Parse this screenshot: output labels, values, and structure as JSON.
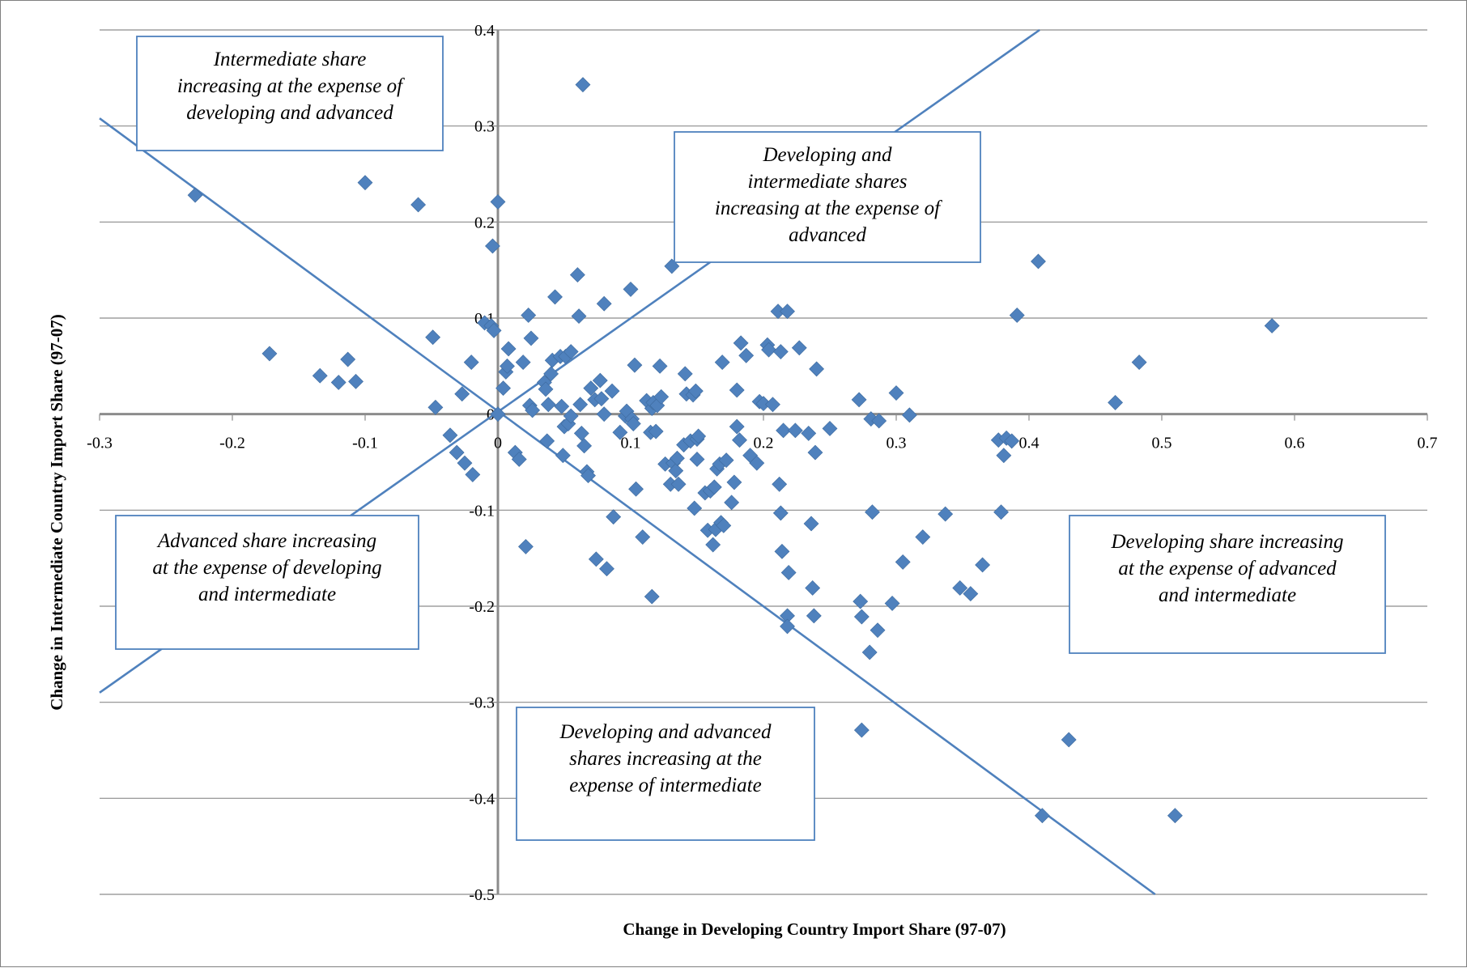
{
  "chart_data": {
    "type": "scatter",
    "title": "",
    "xlabel": "Change in Developing Country Import Share (97-07)",
    "ylabel": "Change in Intermediate Country Import Share (97-07)",
    "xlim": [
      -0.3,
      0.7
    ],
    "ylim": [
      -0.5,
      0.4
    ],
    "x_ticks": [
      "-0.3",
      "-0.2",
      "-0.1",
      "0",
      "0.1",
      "0.2",
      "0.3",
      "0.4",
      "0.5",
      "0.6",
      "0.7"
    ],
    "y_ticks": [
      "0.4",
      "0.3",
      "0.2",
      "0.1",
      "0",
      "-0.1",
      "-0.2",
      "-0.3",
      "-0.4",
      "-0.5"
    ],
    "grid": "horizontal",
    "marker": "diamond",
    "point_color": "#4f81bd",
    "guide_lines": [
      {
        "name": "slope-plus-one",
        "points": [
          [
            -0.3,
            -0.29
          ],
          [
            0.408,
            0.4
          ]
        ]
      },
      {
        "name": "slope-minus-one",
        "points": [
          [
            -0.3,
            0.308
          ],
          [
            0.495,
            -0.5
          ]
        ]
      }
    ],
    "annotations": [
      {
        "lines": [
          "Intermediate share",
          "increasing at the expense of",
          "developing and advanced"
        ]
      },
      {
        "lines": [
          "Developing and",
          "intermediate shares",
          "increasing at the expense of",
          "advanced"
        ]
      },
      {
        "lines": [
          "Advanced share increasing",
          "at the expense of developing",
          "and intermediate"
        ]
      },
      {
        "lines": [
          "Developing share increasing",
          "at the expense of advanced",
          "and intermediate"
        ]
      },
      {
        "lines": [
          "Developing and advanced",
          "shares increasing at the",
          "expense of intermediate"
        ]
      }
    ],
    "series": [
      {
        "points": [
          [
            -0.228,
            0.228
          ],
          [
            -0.172,
            0.063
          ],
          [
            -0.134,
            0.04
          ],
          [
            -0.12,
            0.033
          ],
          [
            -0.113,
            0.057
          ],
          [
            -0.107,
            0.034
          ],
          [
            -0.1,
            0.241
          ],
          [
            -0.06,
            0.218
          ],
          [
            -0.049,
            0.08
          ],
          [
            -0.047,
            0.007
          ],
          [
            -0.036,
            -0.022
          ],
          [
            -0.031,
            -0.04
          ],
          [
            -0.027,
            0.021
          ],
          [
            -0.025,
            -0.051
          ],
          [
            -0.02,
            0.054
          ],
          [
            -0.019,
            -0.063
          ],
          [
            -0.01,
            0.095
          ],
          [
            -0.005,
            0.092
          ],
          [
            -0.004,
            0.175
          ],
          [
            -0.003,
            0.087
          ],
          [
            0.0,
            0.0
          ],
          [
            0.0,
            0.221
          ],
          [
            0.004,
            0.027
          ],
          [
            0.006,
            0.044
          ],
          [
            0.007,
            0.05
          ],
          [
            0.008,
            0.068
          ],
          [
            0.013,
            -0.04
          ],
          [
            0.016,
            -0.047
          ],
          [
            0.019,
            0.054
          ],
          [
            0.021,
            -0.138
          ],
          [
            0.023,
            0.103
          ],
          [
            0.024,
            0.009
          ],
          [
            0.025,
            0.079
          ],
          [
            0.026,
            0.004
          ],
          [
            0.035,
            0.033
          ],
          [
            0.036,
            0.026
          ],
          [
            0.037,
            -0.028
          ],
          [
            0.038,
            0.01
          ],
          [
            0.04,
            0.042
          ],
          [
            0.041,
            0.056
          ],
          [
            0.043,
            0.122
          ],
          [
            0.047,
            0.06
          ],
          [
            0.048,
            0.008
          ],
          [
            0.049,
            -0.043
          ],
          [
            0.05,
            -0.013
          ],
          [
            0.051,
            0.06
          ],
          [
            0.053,
            -0.01
          ],
          [
            0.055,
            -0.002
          ],
          [
            0.055,
            0.065
          ],
          [
            0.06,
            0.145
          ],
          [
            0.061,
            0.102
          ],
          [
            0.062,
            0.01
          ],
          [
            0.063,
            -0.02
          ],
          [
            0.064,
            0.343
          ],
          [
            0.065,
            -0.033
          ],
          [
            0.067,
            -0.06
          ],
          [
            0.068,
            -0.064
          ],
          [
            0.07,
            0.027
          ],
          [
            0.073,
            0.015
          ],
          [
            0.074,
            -0.151
          ],
          [
            0.077,
            0.035
          ],
          [
            0.078,
            0.016
          ],
          [
            0.08,
            0.0
          ],
          [
            0.08,
            0.115
          ],
          [
            0.082,
            -0.161
          ],
          [
            0.086,
            0.024
          ],
          [
            0.087,
            -0.107
          ],
          [
            0.092,
            -0.019
          ],
          [
            0.096,
            -0.002
          ],
          [
            0.097,
            0.003
          ],
          [
            0.1,
            0.13
          ],
          [
            0.101,
            -0.005
          ],
          [
            0.102,
            -0.01
          ],
          [
            0.103,
            0.051
          ],
          [
            0.104,
            -0.078
          ],
          [
            0.109,
            -0.128
          ],
          [
            0.112,
            0.014
          ],
          [
            0.115,
            -0.019
          ],
          [
            0.116,
            -0.19
          ],
          [
            0.116,
            0.006
          ],
          [
            0.117,
            0.012
          ],
          [
            0.119,
            -0.018
          ],
          [
            0.12,
            0.009
          ],
          [
            0.122,
            0.05
          ],
          [
            0.123,
            0.018
          ],
          [
            0.126,
            -0.052
          ],
          [
            0.13,
            -0.073
          ],
          [
            0.131,
            0.154
          ],
          [
            0.132,
            -0.051
          ],
          [
            0.134,
            -0.059
          ],
          [
            0.135,
            -0.046
          ],
          [
            0.136,
            -0.073
          ],
          [
            0.14,
            -0.032
          ],
          [
            0.141,
            0.042
          ],
          [
            0.142,
            0.021
          ],
          [
            0.145,
            -0.028
          ],
          [
            0.147,
            0.02
          ],
          [
            0.148,
            -0.098
          ],
          [
            0.149,
            0.024
          ],
          [
            0.15,
            -0.026
          ],
          [
            0.15,
            -0.047
          ],
          [
            0.151,
            -0.023
          ],
          [
            0.156,
            -0.082
          ],
          [
            0.158,
            -0.121
          ],
          [
            0.16,
            -0.08
          ],
          [
            0.162,
            -0.136
          ],
          [
            0.163,
            -0.076
          ],
          [
            0.164,
            -0.12
          ],
          [
            0.165,
            -0.057
          ],
          [
            0.167,
            -0.052
          ],
          [
            0.168,
            -0.113
          ],
          [
            0.169,
            0.054
          ],
          [
            0.17,
            -0.116
          ],
          [
            0.172,
            -0.048
          ],
          [
            0.176,
            -0.092
          ],
          [
            0.178,
            -0.071
          ],
          [
            0.18,
            -0.013
          ],
          [
            0.18,
            0.025
          ],
          [
            0.182,
            -0.027
          ],
          [
            0.183,
            0.074
          ],
          [
            0.187,
            0.061
          ],
          [
            0.19,
            -0.043
          ],
          [
            0.195,
            -0.051
          ],
          [
            0.197,
            0.013
          ],
          [
            0.2,
            0.011
          ],
          [
            0.203,
            0.072
          ],
          [
            0.204,
            0.067
          ],
          [
            0.207,
            0.01
          ],
          [
            0.211,
            0.107
          ],
          [
            0.212,
            -0.073
          ],
          [
            0.213,
            0.065
          ],
          [
            0.213,
            -0.103
          ],
          [
            0.214,
            -0.143
          ],
          [
            0.215,
            -0.017
          ],
          [
            0.218,
            0.107
          ],
          [
            0.218,
            -0.21
          ],
          [
            0.218,
            -0.221
          ],
          [
            0.219,
            -0.165
          ],
          [
            0.224,
            -0.017
          ],
          [
            0.227,
            0.069
          ],
          [
            0.234,
            -0.02
          ],
          [
            0.236,
            -0.114
          ],
          [
            0.237,
            -0.181
          ],
          [
            0.238,
            -0.21
          ],
          [
            0.239,
            -0.04
          ],
          [
            0.24,
            0.047
          ],
          [
            0.25,
            -0.015
          ],
          [
            0.272,
            0.015
          ],
          [
            0.273,
            -0.195
          ],
          [
            0.274,
            -0.211
          ],
          [
            0.274,
            -0.329
          ],
          [
            0.28,
            -0.248
          ],
          [
            0.281,
            -0.005
          ],
          [
            0.282,
            -0.102
          ],
          [
            0.286,
            -0.225
          ],
          [
            0.287,
            -0.007
          ],
          [
            0.297,
            -0.197
          ],
          [
            0.3,
            0.022
          ],
          [
            0.305,
            -0.154
          ],
          [
            0.31,
            -0.001
          ],
          [
            0.32,
            -0.128
          ],
          [
            0.337,
            -0.104
          ],
          [
            0.348,
            -0.181
          ],
          [
            0.356,
            -0.187
          ],
          [
            0.365,
            -0.157
          ],
          [
            0.377,
            -0.027
          ],
          [
            0.379,
            -0.102
          ],
          [
            0.381,
            -0.043
          ],
          [
            0.383,
            -0.025
          ],
          [
            0.387,
            -0.028
          ],
          [
            0.391,
            0.103
          ],
          [
            0.407,
            0.159
          ],
          [
            0.41,
            -0.418
          ],
          [
            0.43,
            -0.339
          ],
          [
            0.465,
            0.012
          ],
          [
            0.483,
            0.054
          ],
          [
            0.51,
            -0.418
          ],
          [
            0.583,
            0.092
          ]
        ]
      }
    ]
  }
}
